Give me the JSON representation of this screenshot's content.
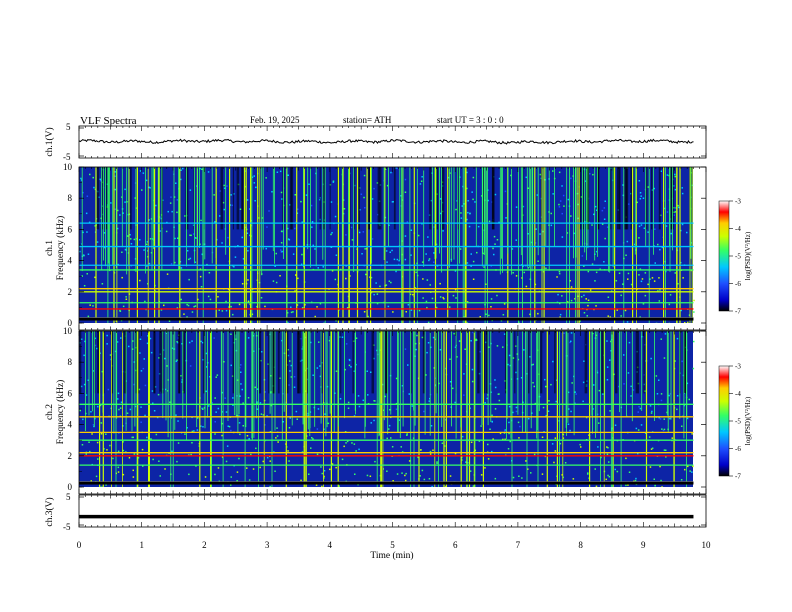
{
  "header": {
    "title": "VLF  Spectra",
    "date": "Feb. 19, 2025",
    "station": "station= ATH",
    "start": "start  UT  =    3  : 0   : 0"
  },
  "colors": {
    "background": "#ffffff",
    "spectrogram_base": "#0d24a6",
    "waveform": "#000000",
    "colormap": [
      "#000000",
      "#0000c8",
      "#1e50ff",
      "#00c8ff",
      "#33ff66",
      "#ccff00",
      "#ffcc00",
      "#ff0000",
      "#ffffff"
    ]
  },
  "chart_data": [
    {
      "type": "line",
      "panel": "ch1-waveform",
      "ylabel": "ch.1(V)",
      "ylim": [
        -5,
        5
      ],
      "yticks": [
        "5",
        "-5"
      ],
      "xlim": [
        0,
        10
      ],
      "series": [
        {
          "x": [
            0,
            1,
            2,
            3,
            4,
            5,
            6,
            7,
            8,
            9,
            9.8
          ],
          "values": [
            0.3,
            0.1,
            0.4,
            0.2,
            0.0,
            0.3,
            0.1,
            -0.1,
            0.2,
            0.4,
            0.1
          ]
        }
      ]
    },
    {
      "type": "heatmap",
      "panel": "ch1-spectrogram",
      "ylabel": "ch.1 Frequency (kHz)",
      "ylim": [
        0,
        10
      ],
      "yticks": [
        "0",
        "2",
        "4",
        "6",
        "8",
        "10"
      ],
      "xlim": [
        0,
        9.8
      ],
      "zlim": [
        -7,
        -3
      ],
      "horizontal_lines_khz": [
        {
          "f": 0.3,
          "level": 1.0
        },
        {
          "f": 0.9,
          "level": 0.85
        },
        {
          "f": 1.3,
          "level": 0.55
        },
        {
          "f": 2.0,
          "level": 0.6
        },
        {
          "f": 2.2,
          "level": 0.7
        },
        {
          "f": 3.4,
          "level": 0.45
        },
        {
          "f": 3.7,
          "level": 0.4
        },
        {
          "f": 4.9,
          "level": 0.35
        },
        {
          "f": 6.4,
          "level": 0.35
        }
      ]
    },
    {
      "type": "heatmap",
      "panel": "ch2-spectrogram",
      "ylabel": "ch.2 Frequency (kHz)",
      "ylim": [
        0,
        10
      ],
      "yticks": [
        "0",
        "2",
        "4",
        "6",
        "8",
        "10"
      ],
      "xlim": [
        0,
        9.8
      ],
      "zlim": [
        -7,
        -3
      ],
      "horizontal_lines_khz": [
        {
          "f": 0.3,
          "level": 1.0
        },
        {
          "f": 1.4,
          "level": 0.55
        },
        {
          "f": 2.0,
          "level": 0.85
        },
        {
          "f": 2.2,
          "level": 0.75
        },
        {
          "f": 3.0,
          "level": 0.55
        },
        {
          "f": 3.5,
          "level": 0.7
        },
        {
          "f": 4.5,
          "level": 0.75
        },
        {
          "f": 5.3,
          "level": 0.5
        }
      ]
    },
    {
      "type": "line",
      "panel": "ch3-waveform",
      "ylabel": "ch.3(V)",
      "ylim": [
        -5,
        5
      ],
      "yticks": [
        "5",
        "-5"
      ],
      "xlabel": "Time  (min)",
      "xticks": [
        "0",
        "1",
        "2",
        "3",
        "4",
        "5",
        "6",
        "7",
        "8",
        "9",
        "10"
      ],
      "xlim": [
        0,
        10
      ],
      "series": [
        {
          "x": [
            0,
            9.8
          ],
          "values": [
            -2.0,
            -2.0
          ]
        }
      ]
    }
  ],
  "colorbars": [
    {
      "label": "log(PSD)(V²/Hz)",
      "ticks": [
        "-3",
        "-4",
        "-5",
        "-6",
        "-7"
      ]
    },
    {
      "label": "log(PSD)(V²/Hz)",
      "ticks": [
        "-3",
        "-4",
        "-5",
        "-6",
        "-7"
      ]
    }
  ]
}
